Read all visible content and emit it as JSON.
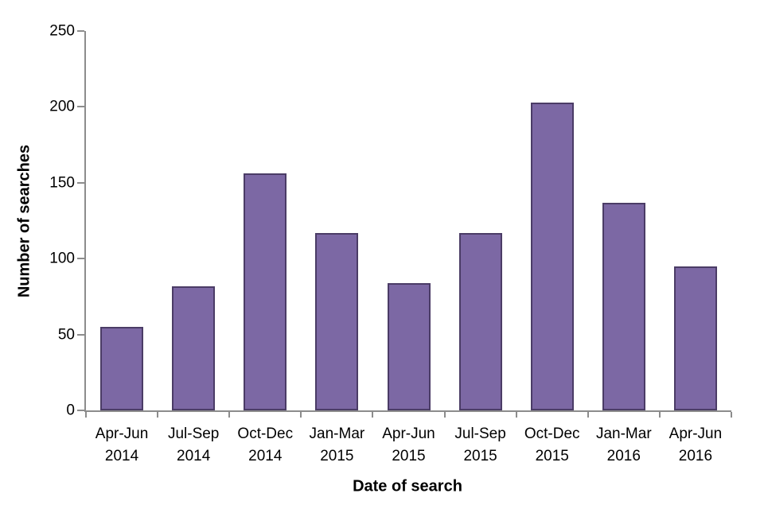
{
  "chart_data": {
    "type": "bar",
    "title": "",
    "xlabel": "Date of search",
    "ylabel": "Number of searches",
    "categories": [
      "Apr-Jun 2014",
      "Jul-Sep 2014",
      "Oct-Dec 2014",
      "Jan-Mar 2015",
      "Apr-Jun 2015",
      "Jul-Sep 2015",
      "Oct-Dec 2015",
      "Jan-Mar 2016",
      "Apr-Jun 2016"
    ],
    "values": [
      55,
      82,
      156,
      117,
      84,
      117,
      203,
      137,
      95
    ],
    "ylim": [
      0,
      250
    ],
    "yticks": [
      0,
      50,
      100,
      150,
      200,
      250
    ],
    "grid": false,
    "legend": "none",
    "bar_fill": "#7C68A4",
    "bar_border": "#4B3C66",
    "axis_color": "#8C8C8C",
    "text_color": "#000000",
    "background": "#FFFFFF"
  }
}
